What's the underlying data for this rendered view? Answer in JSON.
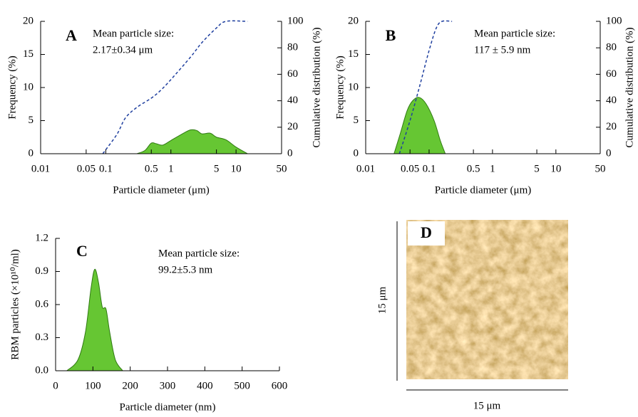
{
  "chart_data": [
    {
      "type": "area",
      "panel_label": "A",
      "annotations": [
        "Mean particle size:",
        "2.17±0.34 μm"
      ],
      "x_label": "Particle diameter (μm)",
      "y_label": "Frequency (%)",
      "y2_label": "Cumulative distribution (%)",
      "xscale": "log",
      "xlim": [
        0.01,
        50
      ],
      "xticks": [
        0.01,
        0.05,
        0.1,
        0.5,
        1,
        5,
        10,
        50
      ],
      "ylim": [
        0,
        20
      ],
      "yticks": [
        0,
        5,
        10,
        15,
        20
      ],
      "y2lim": [
        0,
        100
      ],
      "y2ticks": [
        0,
        20,
        40,
        60,
        80,
        100
      ],
      "series": [
        {
          "style": "area",
          "color": "#66c633",
          "x": [
            0.3,
            0.4,
            0.5,
            0.6,
            0.75,
            1,
            1.5,
            2,
            2.5,
            3,
            4,
            5,
            7,
            10,
            15
          ],
          "values": [
            0,
            0.5,
            1.6,
            1.5,
            1.3,
            2,
            3,
            3.6,
            3.5,
            3,
            3.1,
            2.5,
            2.1,
            1,
            0
          ]
        },
        {
          "style": "dashed",
          "axis": "y2",
          "color": "#1f3f9f",
          "x": [
            0.09,
            0.1,
            0.15,
            0.2,
            0.3,
            0.5,
            0.7,
            1,
            2,
            3,
            5,
            7,
            15
          ],
          "values": [
            0,
            3,
            15,
            27,
            35,
            42,
            48,
            56,
            73,
            84,
            95,
            100,
            100
          ]
        }
      ]
    },
    {
      "type": "area",
      "panel_label": "B",
      "annotations": [
        "Mean particle size:",
        "117 ± 5.9 nm"
      ],
      "x_label": "Particle diameter (μm)",
      "y_label": "Frequency (%)",
      "y2_label": "Cumulative distribution (%)",
      "xscale": "log",
      "xlim": [
        0.01,
        50
      ],
      "xticks": [
        0.01,
        0.05,
        0.1,
        0.5,
        1,
        5,
        10,
        50
      ],
      "ylim": [
        0,
        20
      ],
      "yticks": [
        0,
        5,
        10,
        15,
        20
      ],
      "y2lim": [
        0,
        100
      ],
      "y2ticks": [
        0,
        20,
        40,
        60,
        80,
        100
      ],
      "series": [
        {
          "style": "area",
          "color": "#66c633",
          "x": [
            0.028,
            0.035,
            0.045,
            0.055,
            0.07,
            0.09,
            0.12,
            0.15,
            0.18
          ],
          "values": [
            0,
            3,
            6.5,
            8,
            8.5,
            7.5,
            5,
            2,
            0
          ]
        },
        {
          "style": "dashed",
          "axis": "y2",
          "color": "#1f3f9f",
          "x": [
            0.034,
            0.05,
            0.07,
            0.1,
            0.13,
            0.16,
            0.23
          ],
          "values": [
            0,
            25,
            50,
            78,
            95,
            100,
            100
          ]
        }
      ]
    },
    {
      "type": "area",
      "panel_label": "C",
      "annotations": [
        "Mean particle size:",
        "99.2±5.3 nm"
      ],
      "x_label": "Particle diameter (nm)",
      "y_label": "RBM particles (×10¹⁰/ml)",
      "xlim": [
        0,
        600
      ],
      "xticks": [
        0,
        100,
        200,
        300,
        400,
        500,
        600
      ],
      "ylim": [
        0,
        1.2
      ],
      "yticks": [
        {
          "value": 0,
          "label": "0.0"
        },
        0.3,
        0.6,
        0.9,
        1.2
      ],
      "series": [
        {
          "style": "area",
          "color": "#66c633",
          "x": [
            30,
            60,
            80,
            95,
            105,
            115,
            125,
            135,
            145,
            160,
            180
          ],
          "values": [
            0,
            0.1,
            0.35,
            0.75,
            0.92,
            0.8,
            0.58,
            0.56,
            0.35,
            0.1,
            0
          ]
        }
      ]
    }
  ],
  "image_panel": {
    "label": "D",
    "x_label": "15 μm",
    "y_label": "15 μm"
  }
}
